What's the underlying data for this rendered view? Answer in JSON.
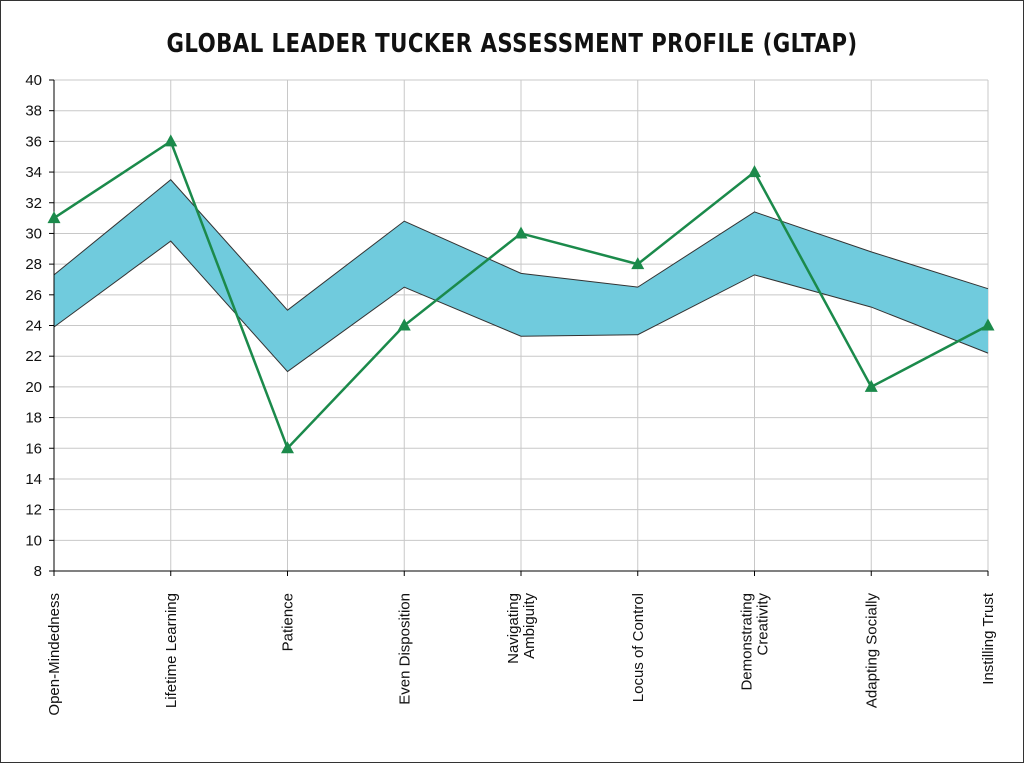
{
  "chart_data": {
    "type": "line",
    "title": "GLOBAL LEADER TUCKER ASSESSMENT PROFILE (GLTAP)",
    "xlabel": "",
    "ylabel": "",
    "ylim": [
      8,
      40
    ],
    "yticks": [
      40,
      38,
      36,
      34,
      32,
      30,
      28,
      26,
      24,
      22,
      20,
      18,
      16,
      14,
      12,
      10,
      8
    ],
    "grid": true,
    "legend": "none",
    "categories": [
      [
        "Open-Mindedness"
      ],
      [
        "Lifetime Learning"
      ],
      [
        "Patience"
      ],
      [
        "Even Disposition"
      ],
      [
        "Navigating",
        "Ambiguity"
      ],
      [
        "Locus of Control"
      ],
      [
        "Demonstrating",
        "Creativity"
      ],
      [
        "Adapting Socially"
      ],
      [
        "Instilling Trust"
      ]
    ],
    "band": {
      "upper": [
        27.3,
        33.5,
        25.0,
        30.8,
        27.4,
        26.5,
        31.4,
        28.8,
        26.4
      ],
      "lower": [
        23.9,
        29.5,
        21.0,
        26.5,
        23.3,
        23.4,
        27.3,
        25.2,
        22.2
      ],
      "color": "#70cbdd"
    },
    "series": [
      {
        "values": [
          31,
          36,
          16,
          24,
          30,
          28,
          34,
          20,
          24
        ],
        "color": "#1b8a4b",
        "marker": "triangle"
      }
    ]
  }
}
